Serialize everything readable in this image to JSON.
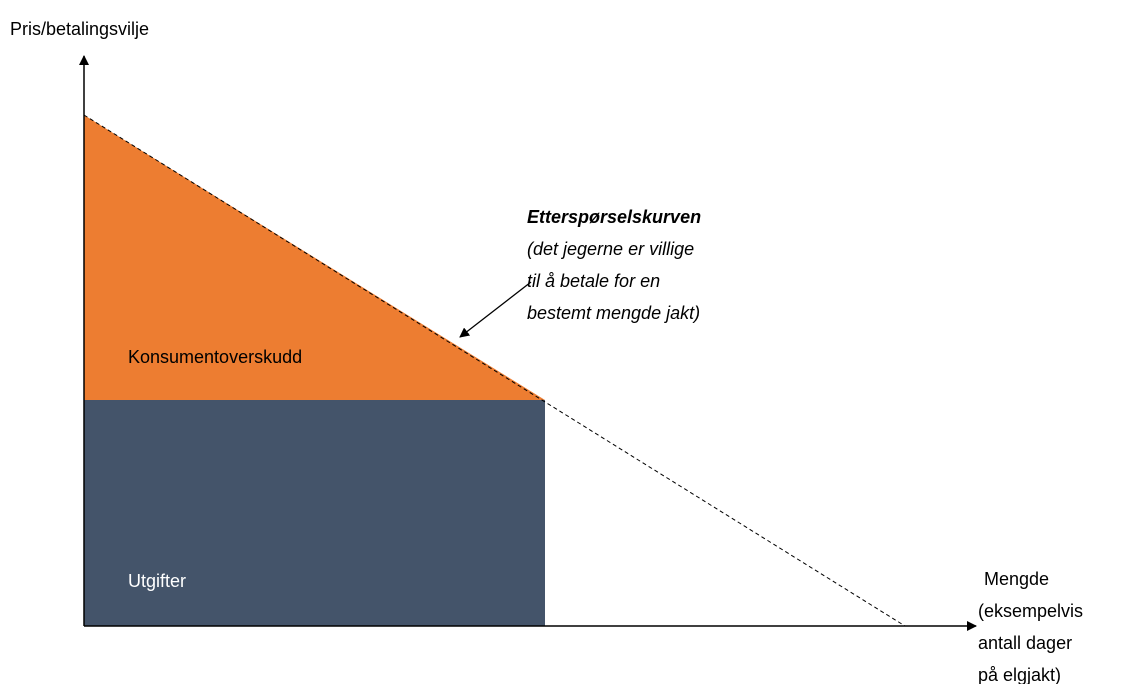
{
  "axes": {
    "y_label": "Pris/betalingsvilje",
    "x_label": [
      "Mengde",
      "(eksempelvis",
      "antall dager",
      "på elgjakt)"
    ]
  },
  "regions": {
    "surplus": "Konsumentoverskudd",
    "expenditure": "Utgifter"
  },
  "annotation": {
    "title": "Etterspørselskurven",
    "lines": [
      "(det jegerne er villige",
      "til å betale for en",
      "bestemt mengde jakt)"
    ]
  }
}
